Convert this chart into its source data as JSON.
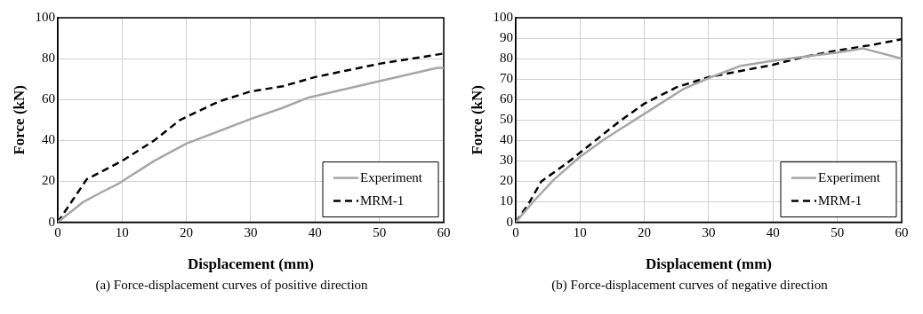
{
  "chart_data": [
    {
      "type": "line",
      "xlabel": "Displacement (mm)",
      "ylabel": "Force (kN)",
      "xlim": [
        0,
        60
      ],
      "xticks": [
        0,
        10,
        20,
        30,
        40,
        50,
        60
      ],
      "ylim": [
        0,
        100
      ],
      "yticks": [
        0,
        20,
        40,
        60,
        80,
        100
      ],
      "grid": true,
      "legend": "bottom right",
      "marker": "none",
      "annotations": [
        "(a) Force-displacement curves of positive direction"
      ],
      "series": [
        {
          "name": "Experiment",
          "color": "#a6a6a6",
          "line_style": "solid",
          "x": [
            0,
            4,
            7,
            9.5,
            15,
            20,
            30,
            35,
            39,
            50,
            59,
            60
          ],
          "values": [
            0,
            10,
            15,
            19,
            30,
            38.5,
            50.5,
            56,
            61,
            69,
            75.5,
            75.5
          ]
        },
        {
          "name": "MRM-1",
          "color": "#000000",
          "line_style": "dashed",
          "x": [
            0,
            4.5,
            10,
            15,
            19,
            25,
            30,
            35,
            40,
            50,
            60
          ],
          "values": [
            0,
            21,
            30,
            40,
            50,
            59,
            64,
            66.5,
            71,
            77.5,
            82.5
          ]
        }
      ]
    },
    {
      "type": "line",
      "xlabel": "Displacement (mm)",
      "ylabel": "Force (kN)",
      "xlim": [
        0,
        60
      ],
      "xticks": [
        0,
        10,
        20,
        30,
        40,
        50,
        60
      ],
      "ylim": [
        0,
        100
      ],
      "yticks": [
        0,
        10,
        20,
        30,
        40,
        50,
        60,
        70,
        80,
        90,
        100
      ],
      "grid": true,
      "legend": "bottom right",
      "marker": "none",
      "annotations": [
        "(b) Force-displacement curves of negative direction"
      ],
      "series": [
        {
          "name": "Experiment",
          "color": "#a6a6a6",
          "line_style": "solid",
          "x": [
            0,
            3,
            6,
            10,
            14,
            20,
            26,
            30,
            35,
            40,
            45,
            50,
            54,
            60
          ],
          "values": [
            0,
            11,
            21,
            32,
            41,
            53,
            65,
            70.5,
            76.5,
            79,
            81,
            83,
            85,
            80
          ]
        },
        {
          "name": "MRM-1",
          "color": "#000000",
          "line_style": "dashed",
          "x": [
            0,
            2,
            4,
            8,
            12,
            16,
            20,
            25,
            30,
            35,
            40,
            45,
            50,
            55,
            60
          ],
          "values": [
            0,
            9,
            20,
            29,
            39,
            49,
            58,
            66,
            71,
            74,
            77,
            81,
            84,
            86.5,
            89.5
          ]
        }
      ]
    }
  ]
}
